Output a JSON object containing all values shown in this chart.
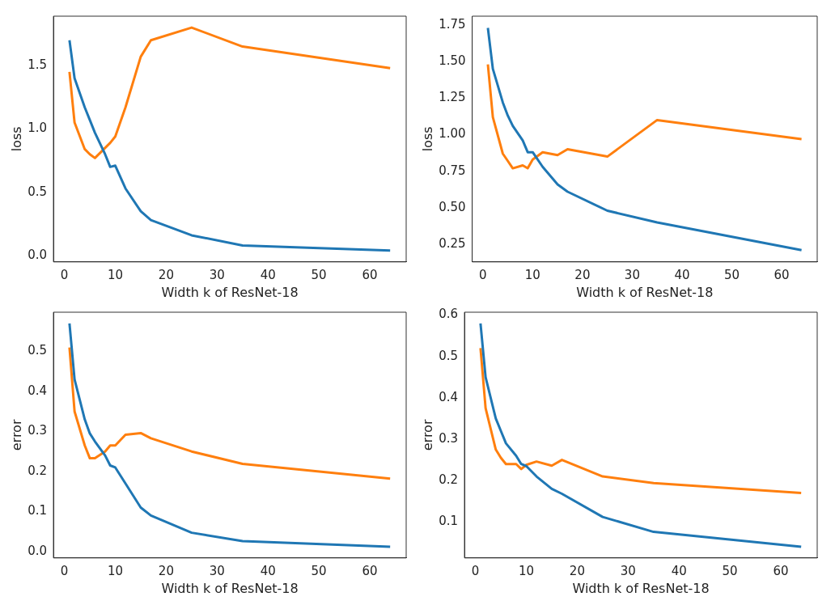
{
  "chart_data": [
    {
      "type": "line",
      "xlabel": "Width k of ResNet-18",
      "ylabel": "loss",
      "marker": "none",
      "grid": false,
      "x": [
        1,
        2,
        4,
        5,
        6,
        8,
        9,
        10,
        12,
        15,
        17,
        25,
        35,
        64
      ],
      "xlim": [
        -2.15,
        67.15
      ],
      "xticks": [
        0,
        10,
        20,
        30,
        40,
        50,
        60
      ],
      "ylim": [
        -0.05,
        1.89
      ],
      "yticks": [
        {
          "value": 0,
          "label": "0.0"
        },
        0.5,
        {
          "value": 1,
          "label": "1.0"
        },
        1.5
      ],
      "series": [
        {
          "color": "#1f77b4",
          "values": [
            1.7,
            1.4,
            1.17,
            1.07,
            0.97,
            0.8,
            0.7,
            0.71,
            0.53,
            0.35,
            0.28,
            0.16,
            0.08,
            0.04
          ]
        },
        {
          "color": "#ff7f0e",
          "values": [
            1.45,
            1.05,
            0.84,
            0.8,
            0.77,
            0.85,
            0.89,
            0.94,
            1.17,
            1.57,
            1.7,
            1.8,
            1.65,
            1.48
          ]
        }
      ]
    },
    {
      "type": "line",
      "xlabel": "Width k of ResNet-18",
      "ylabel": "loss",
      "marker": "none",
      "grid": false,
      "x": [
        1,
        2,
        4,
        5,
        6,
        8,
        9,
        10,
        12,
        15,
        17,
        25,
        35,
        64
      ],
      "xlim": [
        -2.15,
        67.15
      ],
      "xticks": [
        0,
        10,
        20,
        30,
        40,
        50,
        60
      ],
      "ylim": [
        0.13,
        1.81
      ],
      "yticks": [
        0.25,
        {
          "value": 0.5,
          "label": "0.50"
        },
        0.75,
        {
          "value": 1,
          "label": "1.00"
        },
        1.25,
        {
          "value": 1.5,
          "label": "1.50"
        },
        1.75
      ],
      "series": [
        {
          "color": "#1f77b4",
          "values": [
            1.73,
            1.45,
            1.22,
            1.13,
            1.06,
            0.96,
            0.88,
            0.88,
            0.78,
            0.66,
            0.61,
            0.48,
            0.4,
            0.21
          ]
        },
        {
          "color": "#ff7f0e",
          "values": [
            1.48,
            1.12,
            0.87,
            0.82,
            0.77,
            0.79,
            0.77,
            0.83,
            0.88,
            0.86,
            0.9,
            0.85,
            1.1,
            0.97
          ]
        }
      ]
    },
    {
      "type": "line",
      "xlabel": "Width k of ResNet-18",
      "ylabel": "error",
      "marker": "none",
      "grid": false,
      "x": [
        1,
        2,
        4,
        5,
        6,
        8,
        9,
        10,
        12,
        15,
        17,
        25,
        35,
        64
      ],
      "xlim": [
        -2.15,
        67.15
      ],
      "xticks": [
        0,
        10,
        20,
        30,
        40,
        50,
        60
      ],
      "ylim": [
        -0.016,
        0.598
      ],
      "yticks": [
        {
          "value": 0,
          "label": "0.0"
        },
        0.1,
        0.2,
        0.3,
        0.4,
        0.5
      ],
      "series": [
        {
          "color": "#1f77b4",
          "values": [
            0.57,
            0.43,
            0.33,
            0.295,
            0.275,
            0.24,
            0.215,
            0.21,
            0.17,
            0.11,
            0.09,
            0.047,
            0.026,
            0.012
          ]
        },
        {
          "color": "#ff7f0e",
          "values": [
            0.51,
            0.35,
            0.265,
            0.233,
            0.233,
            0.25,
            0.265,
            0.265,
            0.292,
            0.296,
            0.283,
            0.25,
            0.219,
            0.182
          ]
        }
      ]
    },
    {
      "type": "line",
      "xlabel": "Width k of ResNet-18",
      "ylabel": "error",
      "marker": "none",
      "grid": false,
      "x": [
        1,
        2,
        4,
        5,
        6,
        8,
        9,
        10,
        12,
        15,
        17,
        25,
        35,
        64
      ],
      "xlim": [
        -2.15,
        67.15
      ],
      "xticks": [
        0,
        10,
        20,
        30,
        40,
        50,
        60
      ],
      "ylim": [
        0.013,
        0.607
      ],
      "yticks": [
        0.1,
        0.2,
        0.3,
        0.4,
        0.5,
        0.6
      ],
      "series": [
        {
          "color": "#1f77b4",
          "values": [
            0.58,
            0.45,
            0.35,
            0.32,
            0.29,
            0.26,
            0.24,
            0.235,
            0.21,
            0.18,
            0.168,
            0.112,
            0.076,
            0.04
          ]
        },
        {
          "color": "#ff7f0e",
          "values": [
            0.52,
            0.375,
            0.275,
            0.255,
            0.24,
            0.24,
            0.228,
            0.238,
            0.246,
            0.236,
            0.25,
            0.21,
            0.194,
            0.17
          ]
        }
      ]
    }
  ]
}
